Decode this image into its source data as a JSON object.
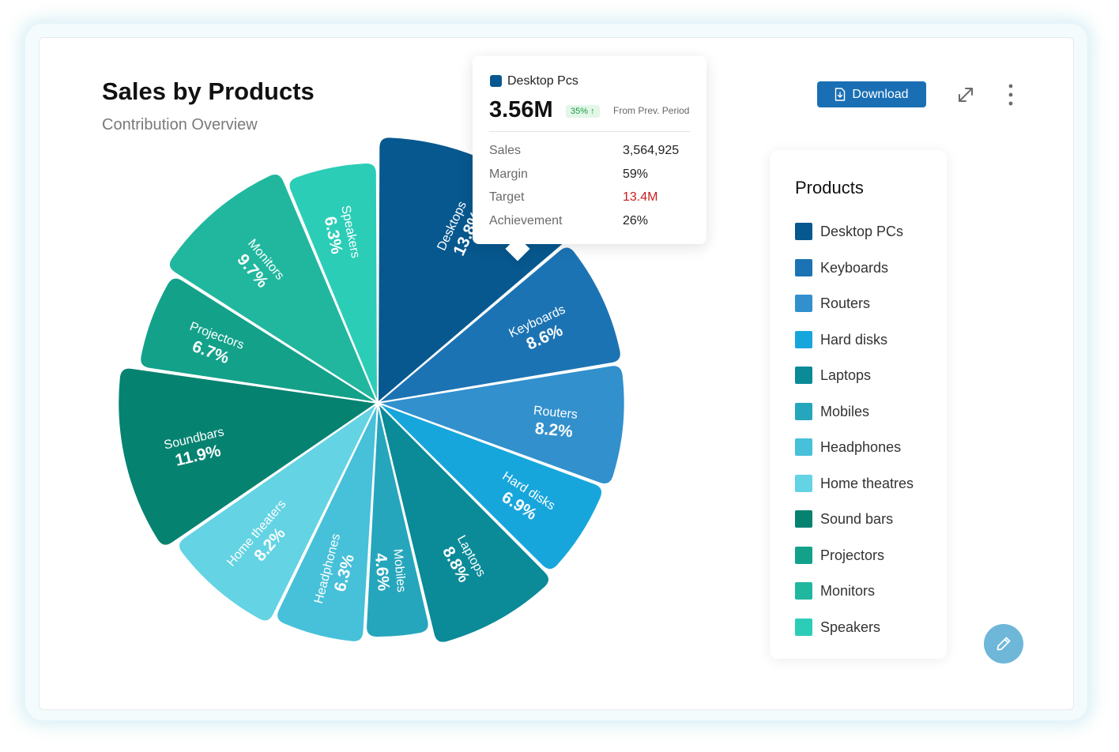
{
  "header": {
    "title": "Sales by Products",
    "subtitle": "Contribution Overview"
  },
  "toolbar": {
    "download_label": "Download",
    "download_icon": "file-download-icon",
    "expand_icon": "expand-icon",
    "more_icon": "more-vertical-icon"
  },
  "tooltip": {
    "name": "Desktop Pcs",
    "color": "#07588f",
    "value": "3.56M",
    "change_badge": "35% ↑",
    "change_note": "From Prev. Period",
    "rows": [
      {
        "label": "Sales",
        "value": "3,564,925"
      },
      {
        "label": "Margin",
        "value": "59%"
      },
      {
        "label": "Target",
        "value": "13.4M",
        "highlight": "#c81e1e"
      },
      {
        "label": "Achievement",
        "value": "26%"
      }
    ]
  },
  "legend": {
    "title": "Products",
    "items": [
      {
        "label": "Desktop PCs",
        "color": "#07588f"
      },
      {
        "label": "Keyboards",
        "color": "#1c73b3"
      },
      {
        "label": "Routers",
        "color": "#3290cd"
      },
      {
        "label": "Hard disks",
        "color": "#17a6dc"
      },
      {
        "label": "Laptops",
        "color": "#0b8a98"
      },
      {
        "label": "Mobiles",
        "color": "#26a6bc"
      },
      {
        "label": "Headphones",
        "color": "#47c0d9"
      },
      {
        "label": "Home theatres",
        "color": "#64d3e3"
      },
      {
        "label": "Sound bars",
        "color": "#068271"
      },
      {
        "label": "Projectors",
        "color": "#13a18a"
      },
      {
        "label": "Monitors",
        "color": "#21b79f"
      },
      {
        "label": "Speakers",
        "color": "#2ccdb7"
      }
    ]
  },
  "chart_data": {
    "type": "pie",
    "variant": "rose",
    "title": "Sales by Products",
    "subtitle": "Contribution Overview",
    "slices": [
      {
        "label": "Desktops",
        "value": 13.8,
        "display": "13.8%",
        "color": "#07588f"
      },
      {
        "label": "Keyboards",
        "value": 8.6,
        "display": "8.6%",
        "color": "#1c73b3"
      },
      {
        "label": "Routers",
        "value": 8.2,
        "display": "8.2%",
        "color": "#3290cd"
      },
      {
        "label": "Hard disks",
        "value": 6.9,
        "display": "6.9%",
        "color": "#17a6dc"
      },
      {
        "label": "Laptops",
        "value": 8.8,
        "display": "8.8%",
        "color": "#0b8a98"
      },
      {
        "label": "Mobiles",
        "value": 4.6,
        "display": "4.6%",
        "color": "#26a6bc"
      },
      {
        "label": "Headphones",
        "value": 6.3,
        "display": "6.3%",
        "color": "#47c0d9"
      },
      {
        "label": "Home theaters",
        "value": 8.2,
        "display": "8.2%",
        "color": "#64d3e3"
      },
      {
        "label": "Soundbars",
        "value": 11.9,
        "display": "11.9%",
        "color": "#068271"
      },
      {
        "label": "Projectors",
        "value": 6.7,
        "display": "6.7%",
        "color": "#13a18a"
      },
      {
        "label": "Monitors",
        "value": 9.7,
        "display": "9.7%",
        "color": "#21b79f"
      },
      {
        "label": "Speakers",
        "value": 6.3,
        "display": "6.3%",
        "color": "#2ccdb7"
      }
    ],
    "legend_position": "right",
    "highlighted_slice": "Desktops"
  },
  "fab": {
    "icon": "pencil-icon"
  }
}
